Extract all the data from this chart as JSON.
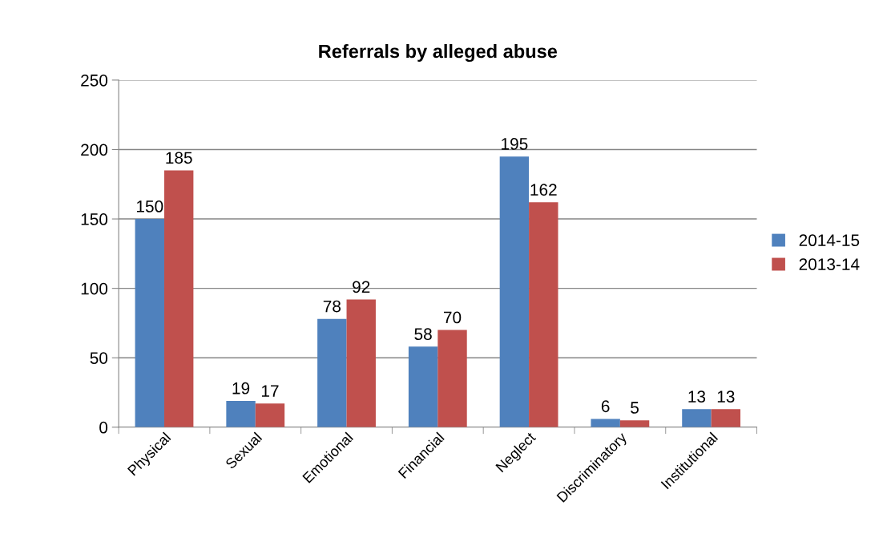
{
  "chart_data": {
    "type": "bar",
    "title": "Referrals by alleged abuse",
    "categories": [
      "Physical",
      "Sexual",
      "Emotional",
      "Financial",
      "Neglect",
      "Discriminatory",
      "Institutional"
    ],
    "series": [
      {
        "name": "2014-15",
        "color": "#4f81bd",
        "values": [
          150,
          19,
          78,
          58,
          195,
          6,
          13
        ]
      },
      {
        "name": "2013-14",
        "color": "#c0504d",
        "values": [
          185,
          17,
          92,
          70,
          162,
          5,
          13
        ]
      }
    ],
    "ylim": [
      0,
      250
    ],
    "yticks": [
      0,
      50,
      100,
      150,
      200,
      250
    ],
    "grid": "y",
    "legend": "right",
    "data_labels": true
  }
}
